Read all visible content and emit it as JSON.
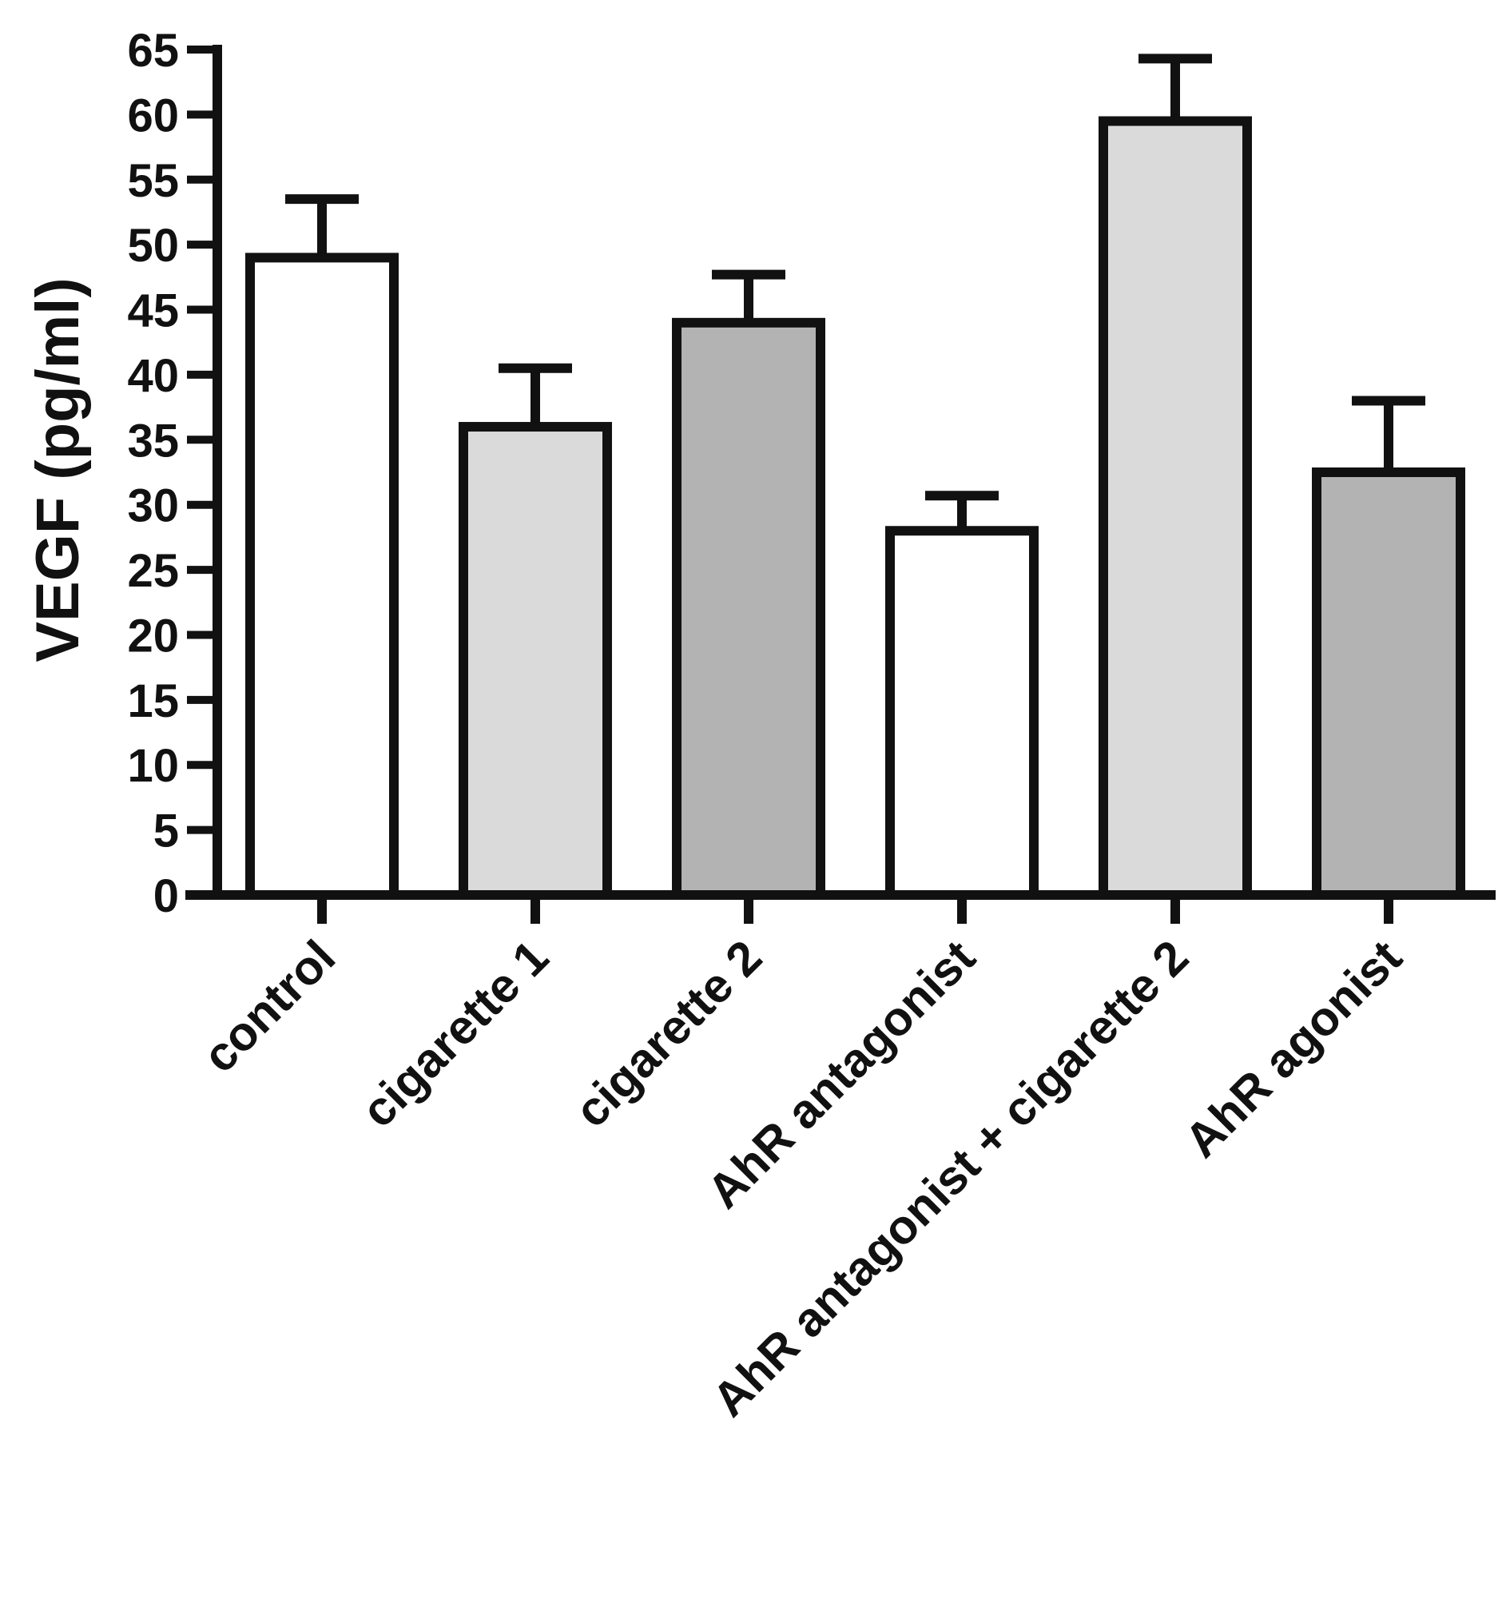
{
  "chart_data": {
    "type": "bar",
    "title": "",
    "xlabel": "",
    "ylabel": "VEGF (pg/ml)",
    "ylim": [
      0,
      65
    ],
    "yticks": [
      0,
      5,
      10,
      15,
      20,
      25,
      30,
      35,
      40,
      45,
      50,
      55,
      60,
      65
    ],
    "grid": false,
    "legend": "none",
    "categories": [
      "control",
      "cigarette 1",
      "cigarette 2",
      "AhR antagonist",
      "AhR antagonist + cigarette 2",
      "AhR agonist"
    ],
    "values": [
      49,
      36,
      44,
      28,
      59.5,
      32.5
    ],
    "error_upper": [
      53.5,
      40.5,
      47.7,
      30.7,
      64.3,
      38
    ],
    "fill_colors": [
      "#ffffff",
      "#dadada",
      "#b3b3b3",
      "#ffffff",
      "#dadada",
      "#b3b3b3"
    ],
    "stroke_color": "#111111"
  }
}
